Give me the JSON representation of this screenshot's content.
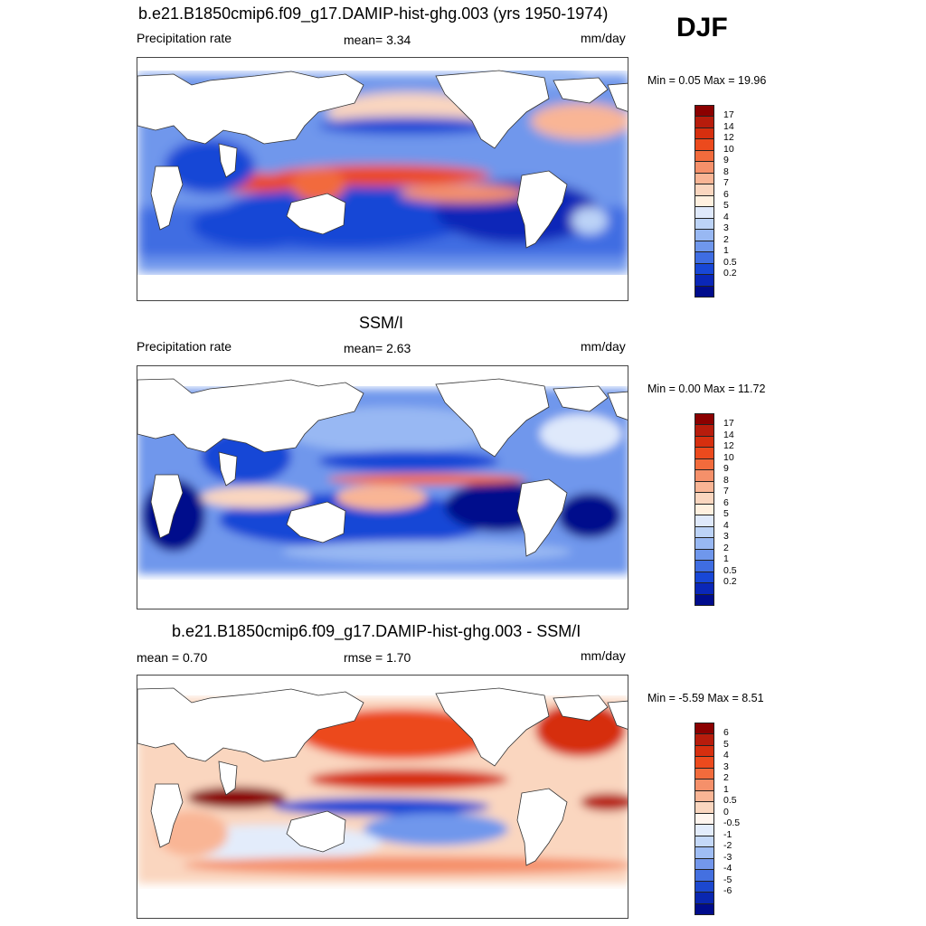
{
  "season": "DJF",
  "panels": [
    {
      "title": "b.e21.B1850cmip6.f09_g17.DAMIP-hist-ghg.003 (yrs 1950-1974)",
      "left_label": "Precipitation rate",
      "center_label": "mean=   3.34",
      "units": "mm/day",
      "minmax": "Min =   0.05 Max =  19.96",
      "mean_value": 3.34,
      "min_value": 0.05,
      "max_value": 19.96,
      "colorbar": {
        "labels": [
          "17",
          "14",
          "12",
          "10",
          "9",
          "8",
          "7",
          "6",
          "5",
          "4",
          "3",
          "2",
          "1",
          "0.5",
          "0.2"
        ],
        "colors": [
          "#8b0000",
          "#b71c0c",
          "#d62f0f",
          "#ec4a1d",
          "#f26b3c",
          "#f5906a",
          "#f9b595",
          "#fad6bf",
          "#fff0df",
          "#dfe9fb",
          "#bcd3f7",
          "#98b8f3",
          "#6f97ec",
          "#3f6de2",
          "#1847d6",
          "#0a27b8",
          "#000c8c"
        ]
      }
    },
    {
      "title": "SSM/I",
      "left_label": "Precipitation rate",
      "center_label": "mean=   2.63",
      "units": "mm/day",
      "minmax": "Min =   0.00 Max =  11.72",
      "mean_value": 2.63,
      "min_value": 0.0,
      "max_value": 11.72,
      "colorbar": {
        "labels": [
          "17",
          "14",
          "12",
          "10",
          "9",
          "8",
          "7",
          "6",
          "5",
          "4",
          "3",
          "2",
          "1",
          "0.5",
          "0.2"
        ],
        "colors": [
          "#8b0000",
          "#b71c0c",
          "#d62f0f",
          "#ec4a1d",
          "#f26b3c",
          "#f5906a",
          "#f9b595",
          "#fad6bf",
          "#fff0df",
          "#dfe9fb",
          "#bcd3f7",
          "#98b8f3",
          "#6f97ec",
          "#3f6de2",
          "#1847d6",
          "#0a27b8",
          "#000c8c"
        ]
      }
    },
    {
      "title": "b.e21.B1850cmip6.f09_g17.DAMIP-hist-ghg.003 - SSM/I",
      "left_label": "mean =   0.70",
      "center_label": "rmse =   1.70",
      "units": "mm/day",
      "minmax": "Min =  -5.59 Max =   8.51",
      "mean_value": 0.7,
      "rmse_value": 1.7,
      "min_value": -5.59,
      "max_value": 8.51,
      "colorbar": {
        "labels": [
          "6",
          "5",
          "4",
          "3",
          "2",
          "1",
          "0.5",
          "0",
          "-0.5",
          "-1",
          "-2",
          "-3",
          "-4",
          "-5",
          "-6"
        ],
        "colors": [
          "#8b0000",
          "#b71c0c",
          "#d62f0f",
          "#ec4a1d",
          "#f26b3c",
          "#f5906a",
          "#f9b595",
          "#fad6bf",
          "#fff5ee",
          "#e3ecfb",
          "#c4d8f8",
          "#9fbdf4",
          "#7397ec",
          "#4470e0",
          "#1c48cf",
          "#0a27b0",
          "#000c8c"
        ]
      }
    }
  ]
}
